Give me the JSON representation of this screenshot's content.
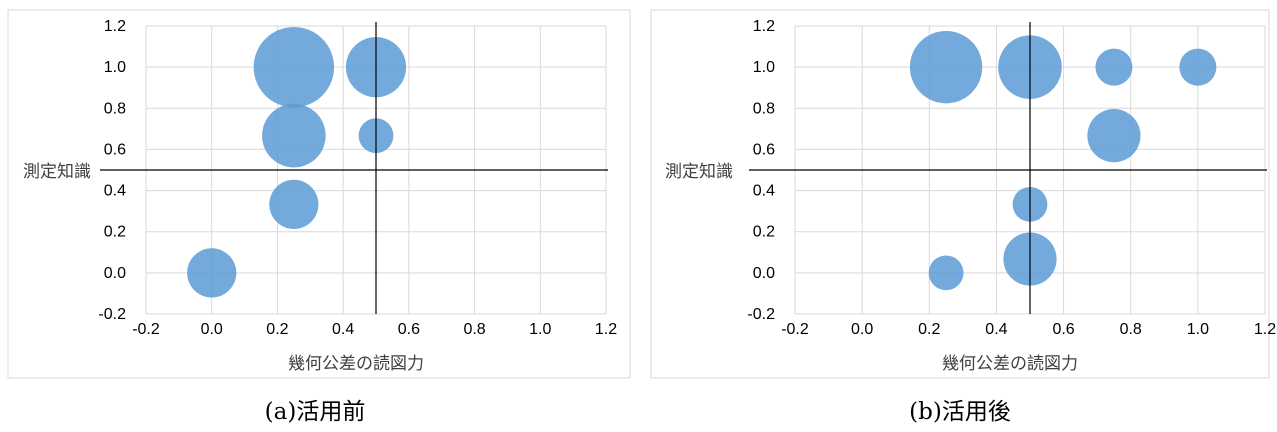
{
  "colors": {
    "bubble": "#5b9bd5",
    "grid": "#d9d9d9",
    "refline": "#000000",
    "frame": "#d9d9d9",
    "text": "#404040"
  },
  "chart_data": [
    {
      "type": "bubble",
      "caption": "(a)活用前",
      "xlabel": "幾何公差の読図力",
      "ylabel": "測定知識",
      "xlim": [
        -0.2,
        1.2
      ],
      "ylim": [
        -0.2,
        1.2
      ],
      "x_ticks": [
        "-0.2",
        "0.0",
        "0.2",
        "0.4",
        "0.6",
        "0.8",
        "1.0",
        "1.2"
      ],
      "y_ticks": [
        "-0.2",
        "0.0",
        "0.2",
        "0.4",
        "0.6",
        "0.8",
        "1.0",
        "1.2"
      ],
      "grid": true,
      "reference_lines": {
        "x": 0.5,
        "y": 0.5
      },
      "points": [
        {
          "x": 0.0,
          "y": 0.0,
          "size": 3
        },
        {
          "x": 0.25,
          "y": 0.333,
          "size": 3
        },
        {
          "x": 0.25,
          "y": 0.667,
          "size": 5
        },
        {
          "x": 0.25,
          "y": 1.0,
          "size": 8
        },
        {
          "x": 0.5,
          "y": 0.667,
          "size": 1.5
        },
        {
          "x": 0.5,
          "y": 1.0,
          "size": 4.5
        }
      ]
    },
    {
      "type": "bubble",
      "caption": "(b)活用後",
      "xlabel": "幾何公差の読図力",
      "ylabel": "測定知識",
      "xlim": [
        -0.2,
        1.2
      ],
      "ylim": [
        -0.2,
        1.2
      ],
      "x_ticks": [
        "-0.2",
        "0.0",
        "0.2",
        "0.4",
        "0.6",
        "0.8",
        "1.0",
        "1.2"
      ],
      "y_ticks": [
        "-0.2",
        "0.0",
        "0.2",
        "0.4",
        "0.6",
        "0.8",
        "1.0",
        "1.2"
      ],
      "grid": true,
      "reference_lines": {
        "x": 0.5,
        "y": 0.5
      },
      "points": [
        {
          "x": 0.25,
          "y": 0.0,
          "size": 1.5
        },
        {
          "x": 0.25,
          "y": 1.0,
          "size": 6.5
        },
        {
          "x": 0.5,
          "y": 0.067,
          "size": 3.5
        },
        {
          "x": 0.5,
          "y": 0.333,
          "size": 1.5
        },
        {
          "x": 0.5,
          "y": 1.0,
          "size": 5
        },
        {
          "x": 0.75,
          "y": 0.667,
          "size": 3.5
        },
        {
          "x": 0.75,
          "y": 1.0,
          "size": 1.7
        },
        {
          "x": 1.0,
          "y": 1.0,
          "size": 1.7
        }
      ]
    }
  ]
}
